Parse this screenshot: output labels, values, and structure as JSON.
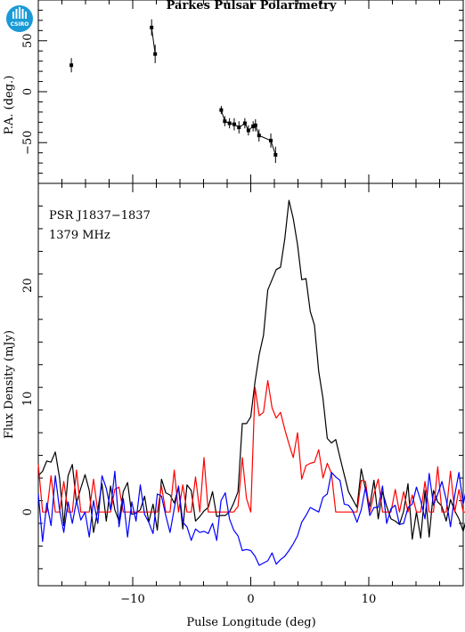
{
  "title": "Parkes Pulsar Polarimetry",
  "logo_text": "CSIRO",
  "colors": {
    "total": "#000000",
    "linear": "#ff0000",
    "circular": "#0000ff",
    "logo": "#1a9ad6"
  },
  "chart_data": [
    {
      "type": "scatter",
      "panel": "position-angle",
      "ylabel": "P.A. (deg.)",
      "xlim": [
        -18,
        18
      ],
      "ylim": [
        -90,
        90
      ],
      "yticks": [
        -50,
        0,
        50
      ],
      "ytick_labels": [
        "−50",
        "0",
        "50"
      ],
      "points": [
        {
          "x": -15.2,
          "y": 26,
          "err": 7
        },
        {
          "x": -8.4,
          "y": 63,
          "err": 8
        },
        {
          "x": -8.1,
          "y": 37,
          "err": 9
        },
        {
          "x": -2.5,
          "y": -18,
          "err": 4
        },
        {
          "x": -2.2,
          "y": -29,
          "err": 5
        },
        {
          "x": -1.8,
          "y": -31,
          "err": 5
        },
        {
          "x": -1.4,
          "y": -32,
          "err": 6
        },
        {
          "x": -1.0,
          "y": -35,
          "err": 6
        },
        {
          "x": -0.5,
          "y": -31,
          "err": 5
        },
        {
          "x": -0.2,
          "y": -38,
          "err": 5
        },
        {
          "x": 0.2,
          "y": -34,
          "err": 5
        },
        {
          "x": 0.4,
          "y": -33,
          "err": 6
        },
        {
          "x": 0.7,
          "y": -43,
          "err": 6
        },
        {
          "x": 1.7,
          "y": -48,
          "err": 7
        },
        {
          "x": 2.1,
          "y": -62,
          "err": 8
        }
      ]
    },
    {
      "type": "line",
      "panel": "flux-profile",
      "annotations": [
        "PSR J1837−1837",
        "1379 MHz"
      ],
      "xlabel": "Pulse Longitude (deg)",
      "ylabel": "Flux Density (mJy)",
      "xlim": [
        -18,
        18
      ],
      "ylim": [
        -6.5,
        29
      ],
      "xticks": [
        -10,
        0,
        10
      ],
      "xtick_labels": [
        "−10",
        "0",
        "10"
      ],
      "yticks": [
        0,
        10,
        20
      ],
      "ytick_labels": [
        "0",
        "10",
        "20"
      ],
      "x_start": -18,
      "x_step": 0.36,
      "series": [
        {
          "key": "total",
          "values": [
            3.2,
            3.6,
            4.5,
            4.4,
            5.3,
            3.0,
            -1.2,
            3.2,
            4.2,
            0.8,
            2.1,
            3.3,
            1.9,
            -1.8,
            0.2,
            2.5,
            -0.8,
            2.3,
            0.2,
            -0.8,
            1.8,
            2.6,
            -0.2,
            -0.1,
            0.2,
            1.4,
            -0.9,
            0.7,
            -1.6,
            2.9,
            1.7,
            1.5,
            0.8,
            2.2,
            -1.5,
            2.4,
            1.9,
            -0.8,
            -0.4,
            0.1,
            0.4,
            1.8,
            -0.4,
            -0.3,
            -0.3,
            0.0,
            0.8,
            1.8,
            7.8,
            7.8,
            8.4,
            11.5,
            13.9,
            15.6,
            19.6,
            20.5,
            21.4,
            21.6,
            24.1,
            27.5,
            25.9,
            23.6,
            20.5,
            20.6,
            17.7,
            16.5,
            12.4,
            10.0,
            6.5,
            6.1,
            6.4,
            4.8,
            3.3,
            1.8,
            1.1,
            0.4,
            3.8,
            2.0,
            0.5,
            2.8,
            -0.6,
            1.8,
            0.5,
            -0.6,
            -0.8,
            -1.1,
            0.1,
            2.5,
            -2.4,
            0.0,
            -2.3,
            1.9,
            -2.2,
            1.9,
            0.9,
            0.5,
            -0.8,
            1.1,
            0.1,
            -0.6,
            -1.7,
            -0.2,
            -0.2,
            -1.4,
            -0.3,
            1.3,
            -0.4,
            0.7,
            2.1,
            0.0
          ]
        },
        {
          "key": "linear",
          "values": [
            4.2,
            0.0,
            0.0,
            3.2,
            0.0,
            0.0,
            2.7,
            0.0,
            0.0,
            3.7,
            0.0,
            0.0,
            0.0,
            2.9,
            0.0,
            0.0,
            0.0,
            0.0,
            2.0,
            2.2,
            0.0,
            0.0,
            0.0,
            0.0,
            0.0,
            0.0,
            0.0,
            0.0,
            0.0,
            2.3,
            0.0,
            0.0,
            3.7,
            0.0,
            2.4,
            0.0,
            0.0,
            3.1,
            0.0,
            4.8,
            0.0,
            0.0,
            0.0,
            0.0,
            0.0,
            0.0,
            0.0,
            0.5,
            4.8,
            1.2,
            0.0,
            11.0,
            8.5,
            8.8,
            11.6,
            9.2,
            8.3,
            8.8,
            7.3,
            6.0,
            4.8,
            7.0,
            2.9,
            4.1,
            4.3,
            4.4,
            5.5,
            3.0,
            4.3,
            3.4,
            0.0,
            0.0,
            0.0,
            0.0,
            0.0,
            0.0,
            2.8,
            2.7,
            0.0,
            1.6,
            2.9,
            0.0,
            0.0,
            0.0,
            2.0,
            0.0,
            1.8,
            0.0,
            1.5,
            0.0,
            0.0,
            2.7,
            0.0,
            0.0,
            4.0,
            0.0,
            0.0,
            3.6,
            0.0,
            2.0,
            0.0,
            0.0,
            3.1,
            0.0,
            0.0,
            2.9,
            0.0,
            3.3,
            0.0,
            0.0
          ]
        },
        {
          "key": "circular",
          "values": [
            1.6,
            -2.6,
            0.8,
            -1.2,
            3.2,
            0.2,
            -1.8,
            0.9,
            -1.0,
            1.0,
            -0.7,
            0.0,
            -2.2,
            1.0,
            -1.0,
            3.2,
            2.1,
            0.2,
            3.6,
            -1.3,
            1.2,
            -2.2,
            0.9,
            -0.8,
            2.4,
            -0.2,
            -0.9,
            -1.9,
            1.6,
            1.4,
            -0.3,
            -1.8,
            0.3,
            2.3,
            -0.9,
            -1.3,
            -2.5,
            -1.5,
            -1.8,
            -1.7,
            -1.9,
            -1.0,
            -2.5,
            1.0,
            1.7,
            -0.6,
            -1.6,
            -2.1,
            -3.4,
            -3.3,
            -3.4,
            -3.9,
            -4.7,
            -4.5,
            -4.3,
            -3.6,
            -4.6,
            -4.2,
            -3.9,
            -3.4,
            -2.8,
            -2.1,
            -0.9,
            -0.3,
            0.4,
            0.2,
            0.0,
            1.3,
            1.6,
            3.5,
            3.1,
            2.8,
            0.7,
            0.6,
            0.1,
            -0.9,
            0.2,
            2.2,
            -0.3,
            0.4,
            0.4,
            2.3,
            -1.0,
            0.3,
            0.6,
            -1.1,
            -1.0,
            0.4,
            0.7,
            2.2,
            1.0,
            -0.6,
            3.4,
            0.6,
            1.6,
            2.7,
            1.1,
            -1.3,
            1.5,
            3.5,
            0.7,
            2.5,
            0.0,
            1.0,
            2.2,
            3.6,
            -0.4,
            2.0,
            2.3,
            1.3
          ]
        }
      ]
    }
  ]
}
